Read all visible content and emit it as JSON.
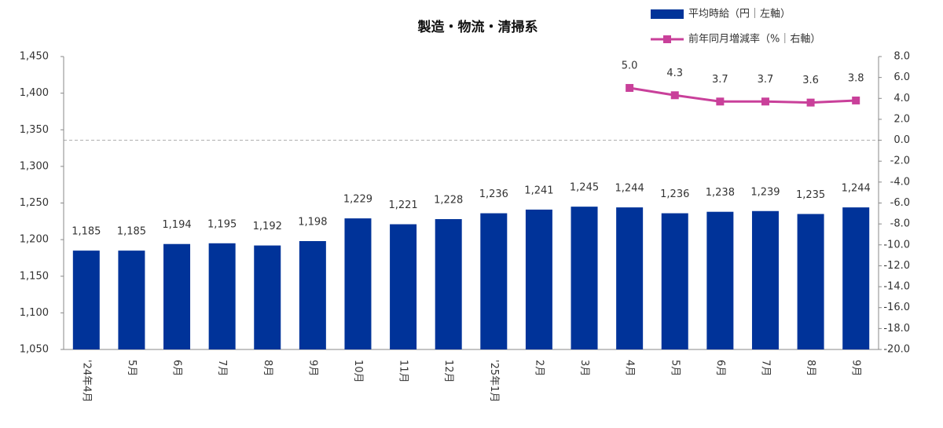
{
  "chart_data": {
    "type": "bar_line",
    "title": "製造・物流・清掃系",
    "categories": [
      "'24年4月",
      "5月",
      "6月",
      "7月",
      "8月",
      "9月",
      "10月",
      "11月",
      "12月",
      "'25年1月",
      "2月",
      "3月",
      "4月",
      "5月",
      "6月",
      "7月",
      "8月",
      "9月"
    ],
    "series": [
      {
        "name": "平均時給（円｜左軸）",
        "type": "bar",
        "color": "#003399",
        "values": [
          1185,
          1185,
          1194,
          1195,
          1192,
          1198,
          1229,
          1221,
          1228,
          1236,
          1241,
          1245,
          1244,
          1236,
          1238,
          1239,
          1235,
          1244
        ],
        "value_labels": [
          "1,185",
          "1,185",
          "1,194",
          "1,195",
          "1,192",
          "1,198",
          "1,229",
          "1,221",
          "1,228",
          "1,236",
          "1,241",
          "1,245",
          "1,244",
          "1,236",
          "1,238",
          "1,239",
          "1,235",
          "1,244"
        ]
      },
      {
        "name": "前年同月増減率（%｜右軸）",
        "type": "line",
        "axis": "y2",
        "color": "#c9409a",
        "values": [
          null,
          null,
          null,
          null,
          null,
          null,
          null,
          null,
          null,
          null,
          null,
          null,
          5.0,
          4.3,
          3.7,
          3.7,
          3.6,
          3.8
        ],
        "value_labels": [
          null,
          null,
          null,
          null,
          null,
          null,
          null,
          null,
          null,
          null,
          null,
          null,
          "5.0",
          "4.3",
          "3.7",
          "3.7",
          "3.6",
          "3.8"
        ]
      }
    ],
    "ylim": [
      1050,
      1450
    ],
    "yticks": [
      {
        "value": 1050,
        "label": "1,050"
      },
      {
        "value": 1100,
        "label": "1,100"
      },
      {
        "value": 1150,
        "label": "1,150"
      },
      {
        "value": 1200,
        "label": "1,200"
      },
      {
        "value": 1250,
        "label": "1,250"
      },
      {
        "value": 1300,
        "label": "1,300"
      },
      {
        "value": 1350,
        "label": "1,350"
      },
      {
        "value": 1400,
        "label": "1,400"
      },
      {
        "value": 1450,
        "label": "1,450"
      }
    ],
    "y2lim": [
      -20,
      8
    ],
    "y2ticks": [
      {
        "value": 8,
        "label": "8.0"
      },
      {
        "value": 6,
        "label": "6.0"
      },
      {
        "value": 4,
        "label": "4.0"
      },
      {
        "value": 2,
        "label": "2.0"
      },
      {
        "value": 0,
        "label": "0.0"
      },
      {
        "value": -2,
        "label": "-2.0"
      },
      {
        "value": -4,
        "label": "-4.0"
      },
      {
        "value": -6,
        "label": "-6.0"
      },
      {
        "value": -8,
        "label": "-8.0"
      },
      {
        "value": -10,
        "label": "-10.0"
      },
      {
        "value": -12,
        "label": "-12.0"
      },
      {
        "value": -14,
        "label": "-14.0"
      },
      {
        "value": -16,
        "label": "-16.0"
      },
      {
        "value": -18,
        "label": "-18.0"
      },
      {
        "value": -20,
        "label": "-20.0"
      }
    ],
    "y2_zero_line": true,
    "legend": "top-right"
  }
}
